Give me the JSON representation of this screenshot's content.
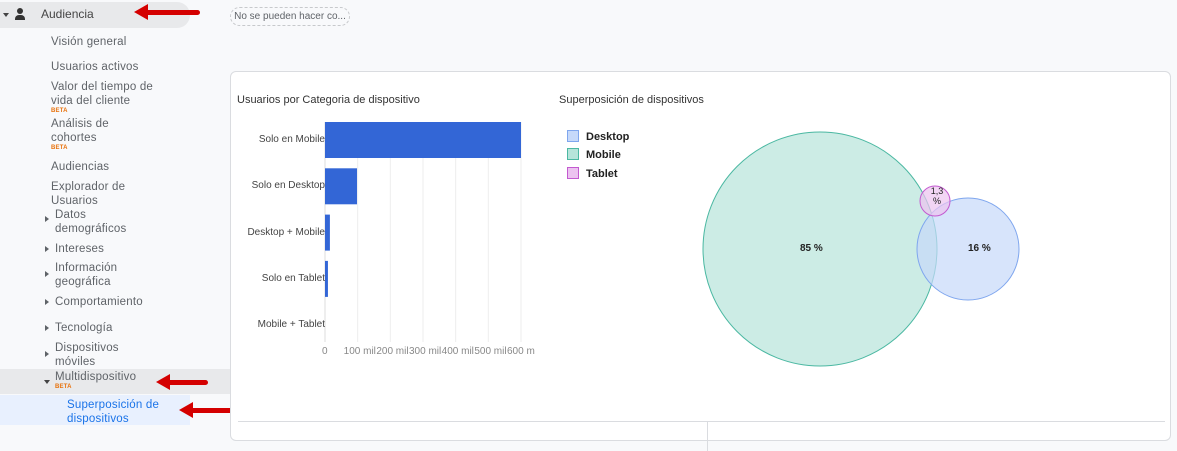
{
  "sidebar": {
    "section": "Audiencia",
    "items": [
      {
        "label": "Visión general"
      },
      {
        "label": "Usuarios activos"
      },
      {
        "label": "Valor del tiempo de vida del cliente",
        "badge": "BETA"
      },
      {
        "label": "Análisis de cohortes",
        "badge": "BETA"
      },
      {
        "label": "Audiencias"
      },
      {
        "label": "Explorador de Usuarios"
      },
      {
        "label": "Datos demográficos"
      },
      {
        "label": "Intereses"
      },
      {
        "label": "Información geográfica"
      },
      {
        "label": "Comportamiento"
      },
      {
        "label": "Tecnología"
      },
      {
        "label": "Dispositivos móviles"
      },
      {
        "label": "Multidispositivo",
        "badge": "BETA"
      },
      {
        "label": "Superposición de dispositivos"
      }
    ]
  },
  "notice": "No se pueden hacer co...",
  "colors": {
    "bar": "#3366d6",
    "desktop": "#c6d9fa",
    "mobile": "#b6e4da",
    "tablet": "#ecc3f0",
    "active": "#1a73e8",
    "arrow": "#d40000"
  },
  "chart_data": [
    {
      "type": "bar",
      "orientation": "horizontal",
      "title": "Usuarios por Categoria de dispositivo",
      "categories": [
        "Solo en Mobile",
        "Solo en Desktop",
        "Desktop + Mobile",
        "Solo en Tablet",
        "Mobile + Tablet"
      ],
      "values": [
        600000,
        98000,
        15000,
        9000,
        0
      ],
      "xlim": [
        0,
        600000
      ],
      "tick_labels": [
        "0",
        "100 mil",
        "200 mil",
        "300 mil",
        "400 mil",
        "500 mil",
        "600 m"
      ],
      "tick_values": [
        0,
        100000,
        200000,
        300000,
        400000,
        500000,
        600000
      ],
      "grid": true
    },
    {
      "type": "venn",
      "title": "Superposición de dispositivos",
      "legend": [
        "Desktop",
        "Mobile",
        "Tablet"
      ],
      "legend_position": "top-left",
      "sets": [
        {
          "name": "Mobile",
          "label": "85 %",
          "value": 85
        },
        {
          "name": "Desktop",
          "label": "16 %",
          "value": 16
        },
        {
          "name": "Tablet",
          "label": "1,3 %",
          "value": 1.3
        }
      ]
    }
  ]
}
